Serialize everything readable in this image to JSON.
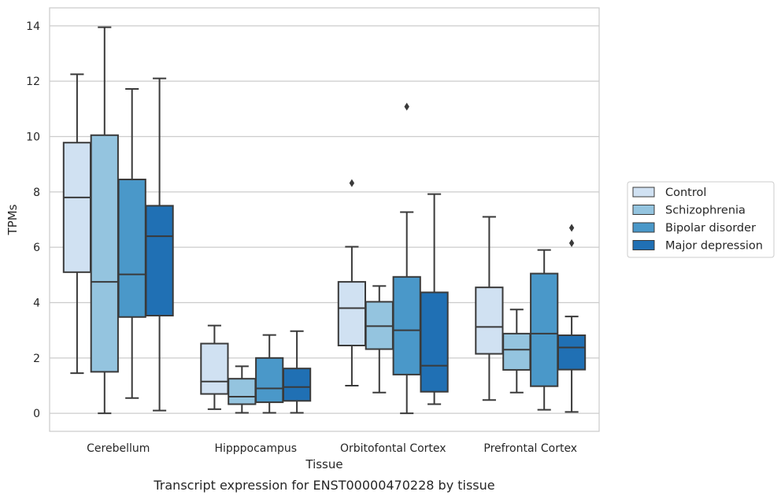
{
  "caption": "Transcript expression for ENST00000470228 by tissue",
  "chart_data": {
    "type": "boxplot",
    "xlabel": "Tissue",
    "ylabel": "TPMs",
    "ylim": [
      -0.65,
      14.65
    ],
    "yticks": [
      0,
      2,
      4,
      6,
      8,
      10,
      12,
      14
    ],
    "grid": "horizontal",
    "legend_position": "right",
    "categories": [
      "Cerebellum",
      "Hipppocampus",
      "Orbitofontal Cortex",
      "Prefrontal Cortex"
    ],
    "series": [
      {
        "name": "Control",
        "color": "#d0e1f2",
        "boxes": [
          {
            "whislo": 1.45,
            "q1": 5.1,
            "med": 7.8,
            "q3": 9.78,
            "whishi": 12.25,
            "fliers": []
          },
          {
            "whislo": 0.15,
            "q1": 0.7,
            "med": 1.15,
            "q3": 2.52,
            "whishi": 3.17,
            "fliers": []
          },
          {
            "whislo": 1.0,
            "q1": 2.45,
            "med": 3.8,
            "q3": 4.75,
            "whishi": 6.02,
            "fliers": [
              8.32
            ]
          },
          {
            "whislo": 0.48,
            "q1": 2.15,
            "med": 3.12,
            "q3": 4.55,
            "whishi": 7.1,
            "fliers": []
          }
        ]
      },
      {
        "name": "Schizophrenia",
        "color": "#94c4df",
        "boxes": [
          {
            "whislo": 0.0,
            "q1": 1.5,
            "med": 4.75,
            "q3": 10.05,
            "whishi": 13.95,
            "fliers": []
          },
          {
            "whislo": 0.02,
            "q1": 0.33,
            "med": 0.6,
            "q3": 1.25,
            "whishi": 1.7,
            "fliers": []
          },
          {
            "whislo": 0.75,
            "q1": 2.32,
            "med": 3.15,
            "q3": 4.03,
            "whishi": 4.6,
            "fliers": []
          },
          {
            "whislo": 0.75,
            "q1": 1.57,
            "med": 2.3,
            "q3": 2.88,
            "whishi": 3.75,
            "fliers": []
          }
        ]
      },
      {
        "name": "Bipolar disorder",
        "color": "#4a98c9",
        "boxes": [
          {
            "whislo": 0.55,
            "q1": 3.48,
            "med": 5.02,
            "q3": 8.45,
            "whishi": 11.72,
            "fliers": []
          },
          {
            "whislo": 0.02,
            "q1": 0.4,
            "med": 0.9,
            "q3": 2.0,
            "whishi": 2.83,
            "fliers": []
          },
          {
            "whislo": 0.0,
            "q1": 1.4,
            "med": 3.0,
            "q3": 4.93,
            "whishi": 7.27,
            "fliers": [
              11.08
            ]
          },
          {
            "whislo": 0.13,
            "q1": 0.98,
            "med": 2.88,
            "q3": 5.05,
            "whishi": 5.9,
            "fliers": []
          }
        ]
      },
      {
        "name": "Major depression",
        "color": "#2070b4",
        "boxes": [
          {
            "whislo": 0.1,
            "q1": 3.53,
            "med": 6.4,
            "q3": 7.5,
            "whishi": 12.1,
            "fliers": []
          },
          {
            "whislo": 0.02,
            "q1": 0.45,
            "med": 0.95,
            "q3": 1.62,
            "whishi": 2.97,
            "fliers": []
          },
          {
            "whislo": 0.33,
            "q1": 0.78,
            "med": 1.72,
            "q3": 4.37,
            "whishi": 7.92,
            "fliers": []
          },
          {
            "whislo": 0.05,
            "q1": 1.58,
            "med": 2.38,
            "q3": 2.82,
            "whishi": 3.5,
            "fliers": [
              6.15,
              6.7
            ]
          }
        ]
      }
    ]
  }
}
